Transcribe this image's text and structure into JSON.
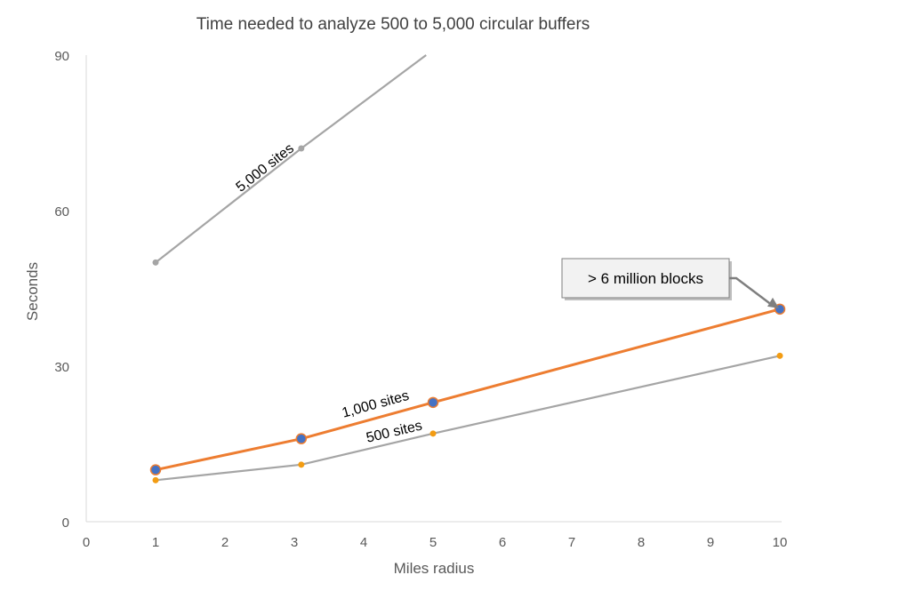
{
  "chart_data": {
    "type": "line",
    "title": "Time needed to analyze 500 to 5,000 circular buffers",
    "xlabel": "Miles radius",
    "ylabel": "Seconds",
    "xlim": [
      0,
      10
    ],
    "ylim": [
      0,
      90
    ],
    "x_ticks": [
      "0",
      "1",
      "2",
      "3",
      "4",
      "5",
      "6",
      "7",
      "8",
      "9",
      "10"
    ],
    "y_ticks": [
      "0",
      "30",
      "60",
      "90"
    ],
    "grid": false,
    "legend": "none",
    "series": [
      {
        "label": "5,000 sites",
        "color": "#a5a5a5",
        "marker_color": "#a5a5a5",
        "points": [
          [
            1,
            50
          ],
          [
            3.1,
            72
          ],
          [
            4.9,
            90
          ]
        ]
      },
      {
        "label": "1,000 sites",
        "color": "#ed7d31",
        "marker_color": "#4472c4",
        "points": [
          [
            1,
            10
          ],
          [
            3.1,
            16
          ],
          [
            5,
            23
          ],
          [
            10,
            41
          ]
        ]
      },
      {
        "label": "500 sites",
        "color": "#a5a5a5",
        "marker_color": "#f39c12",
        "points": [
          [
            1,
            8
          ],
          [
            3.1,
            11
          ],
          [
            5,
            17
          ],
          [
            10,
            32
          ]
        ]
      }
    ],
    "annotations": [
      {
        "text": "> 6 million blocks",
        "x": 10,
        "y": 41
      }
    ]
  }
}
